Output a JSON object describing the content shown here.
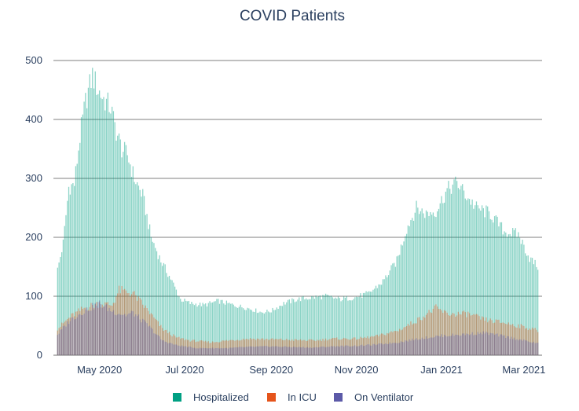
{
  "chart_data": {
    "type": "bar",
    "title": "COVID Patients",
    "barmode": "overlay",
    "xlabel": "",
    "ylabel": "",
    "xlim": [
      "2020-03-29",
      "2021-03-14"
    ],
    "ylim": [
      0,
      500
    ],
    "y_ticks": [
      0,
      100,
      200,
      300,
      400,
      500
    ],
    "x_ticks": [
      {
        "date": "2020-05-01",
        "label": "May 2020"
      },
      {
        "date": "2020-07-01",
        "label": "Jul 2020"
      },
      {
        "date": "2020-09-01",
        "label": "Sep 2020"
      },
      {
        "date": "2020-11-01",
        "label": "Nov 2020"
      },
      {
        "date": "2021-01-01",
        "label": "Jan 2021"
      },
      {
        "date": "2021-03-01",
        "label": "Mar 2021"
      }
    ],
    "grid": true,
    "legend_position": "bottom",
    "series": [
      {
        "name": "Hospitalized",
        "color": "#00a083",
        "opacity": 0.45,
        "keypoints": [
          [
            "2020-04-01",
            145
          ],
          [
            "2020-04-05",
            190
          ],
          [
            "2020-04-09",
            285
          ],
          [
            "2020-04-13",
            290
          ],
          [
            "2020-04-17",
            370
          ],
          [
            "2020-04-21",
            430
          ],
          [
            "2020-04-26",
            475
          ],
          [
            "2020-04-30",
            450
          ],
          [
            "2020-05-04",
            435
          ],
          [
            "2020-05-09",
            420
          ],
          [
            "2020-05-13",
            380
          ],
          [
            "2020-05-17",
            350
          ],
          [
            "2020-05-21",
            340
          ],
          [
            "2020-05-26",
            300
          ],
          [
            "2020-06-01",
            270
          ],
          [
            "2020-06-07",
            200
          ],
          [
            "2020-06-14",
            160
          ],
          [
            "2020-06-21",
            130
          ],
          [
            "2020-06-28",
            95
          ],
          [
            "2020-07-05",
            88
          ],
          [
            "2020-07-15",
            85
          ],
          [
            "2020-07-25",
            92
          ],
          [
            "2020-08-05",
            85
          ],
          [
            "2020-08-15",
            80
          ],
          [
            "2020-08-25",
            73
          ],
          [
            "2020-09-01",
            75
          ],
          [
            "2020-09-10",
            88
          ],
          [
            "2020-09-20",
            95
          ],
          [
            "2020-10-01",
            98
          ],
          [
            "2020-10-10",
            100
          ],
          [
            "2020-10-20",
            95
          ],
          [
            "2020-10-31",
            98
          ],
          [
            "2020-11-10",
            105
          ],
          [
            "2020-11-20",
            125
          ],
          [
            "2020-11-30",
            160
          ],
          [
            "2020-12-07",
            215
          ],
          [
            "2020-12-14",
            250
          ],
          [
            "2020-12-21",
            240
          ],
          [
            "2020-12-28",
            245
          ],
          [
            "2021-01-05",
            280
          ],
          [
            "2021-01-12",
            293
          ],
          [
            "2021-01-19",
            270
          ],
          [
            "2021-01-26",
            250
          ],
          [
            "2021-02-05",
            240
          ],
          [
            "2021-02-15",
            210
          ],
          [
            "2021-02-25",
            205
          ],
          [
            "2021-03-05",
            165
          ],
          [
            "2021-03-11",
            150
          ]
        ]
      },
      {
        "name": "In ICU",
        "color": "#e5541b",
        "opacity": 0.45,
        "keypoints": [
          [
            "2020-04-01",
            45
          ],
          [
            "2020-04-10",
            65
          ],
          [
            "2020-04-20",
            80
          ],
          [
            "2020-05-01",
            88
          ],
          [
            "2020-05-10",
            85
          ],
          [
            "2020-05-15",
            110
          ],
          [
            "2020-05-25",
            105
          ],
          [
            "2020-06-05",
            75
          ],
          [
            "2020-06-15",
            45
          ],
          [
            "2020-06-25",
            30
          ],
          [
            "2020-07-05",
            25
          ],
          [
            "2020-07-20",
            22
          ],
          [
            "2020-08-01",
            25
          ],
          [
            "2020-08-15",
            28
          ],
          [
            "2020-09-01",
            27
          ],
          [
            "2020-09-15",
            26
          ],
          [
            "2020-10-01",
            25
          ],
          [
            "2020-10-15",
            28
          ],
          [
            "2020-11-01",
            28
          ],
          [
            "2020-11-15",
            32
          ],
          [
            "2020-12-01",
            42
          ],
          [
            "2020-12-15",
            60
          ],
          [
            "2020-12-28",
            80
          ],
          [
            "2021-01-05",
            70
          ],
          [
            "2021-01-20",
            70
          ],
          [
            "2021-02-01",
            60
          ],
          [
            "2021-02-15",
            55
          ],
          [
            "2021-03-01",
            48
          ],
          [
            "2021-03-11",
            42
          ]
        ]
      },
      {
        "name": "On Ventilator",
        "color": "#5c5aa8",
        "opacity": 0.45,
        "keypoints": [
          [
            "2020-04-01",
            35
          ],
          [
            "2020-04-10",
            60
          ],
          [
            "2020-04-20",
            75
          ],
          [
            "2020-05-01",
            88
          ],
          [
            "2020-05-10",
            75
          ],
          [
            "2020-05-20",
            68
          ],
          [
            "2020-05-25",
            72
          ],
          [
            "2020-06-05",
            50
          ],
          [
            "2020-06-15",
            25
          ],
          [
            "2020-06-25",
            17
          ],
          [
            "2020-07-10",
            12
          ],
          [
            "2020-08-01",
            12
          ],
          [
            "2020-08-15",
            14
          ],
          [
            "2020-09-01",
            15
          ],
          [
            "2020-09-15",
            14
          ],
          [
            "2020-10-01",
            13
          ],
          [
            "2020-10-15",
            15
          ],
          [
            "2020-11-01",
            16
          ],
          [
            "2020-11-15",
            18
          ],
          [
            "2020-12-01",
            22
          ],
          [
            "2020-12-15",
            28
          ],
          [
            "2021-01-01",
            33
          ],
          [
            "2021-01-15",
            35
          ],
          [
            "2021-02-01",
            38
          ],
          [
            "2021-02-15",
            32
          ],
          [
            "2021-03-01",
            25
          ],
          [
            "2021-03-11",
            20
          ]
        ]
      }
    ],
    "date_range": [
      "2020-04-01",
      "2021-03-11"
    ]
  }
}
